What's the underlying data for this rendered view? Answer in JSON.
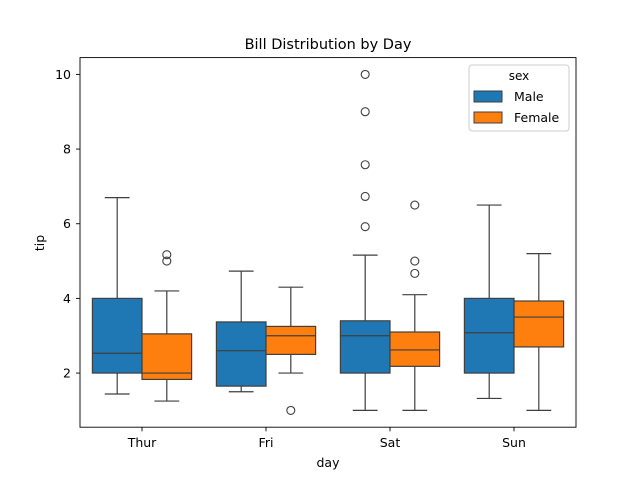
{
  "chart_data": {
    "type": "boxplot",
    "title": "Bill Distribution by Day",
    "xlabel": "day",
    "ylabel": "tip",
    "ylim": [
      0.55,
      10.45
    ],
    "yticks": [
      2,
      4,
      6,
      8,
      10
    ],
    "ytick_labels": [
      "2",
      "4",
      "6",
      "8",
      "10"
    ],
    "categories": [
      "Thur",
      "Fri",
      "Sat",
      "Sun"
    ],
    "legend": {
      "title": "sex",
      "placement": "top-right",
      "entries": [
        "Male",
        "Female"
      ]
    },
    "series": [
      {
        "name": "Male",
        "color": "#1f77b4",
        "boxes": [
          {
            "whisker_low": 1.44,
            "q1": 2.0,
            "median": 2.53,
            "q3": 4.0,
            "whisker_high": 6.7,
            "outliers": []
          },
          {
            "whisker_low": 1.5,
            "q1": 1.65,
            "median": 2.6,
            "q3": 3.37,
            "whisker_high": 4.73,
            "outliers": []
          },
          {
            "whisker_low": 1.0,
            "q1": 2.0,
            "median": 3.0,
            "q3": 3.4,
            "whisker_high": 5.16,
            "outliers": [
              5.92,
              6.73,
              7.58,
              9.0,
              10.0
            ]
          },
          {
            "whisker_low": 1.32,
            "q1": 2.0,
            "median": 3.08,
            "q3": 4.0,
            "whisker_high": 6.5,
            "outliers": []
          }
        ]
      },
      {
        "name": "Female",
        "color": "#ff7f0e",
        "boxes": [
          {
            "whisker_low": 1.25,
            "q1": 1.83,
            "median": 2.0,
            "q3": 3.05,
            "whisker_high": 4.2,
            "outliers": [
              5.0,
              5.17
            ]
          },
          {
            "whisker_low": 2.0,
            "q1": 2.5,
            "median": 3.0,
            "q3": 3.25,
            "whisker_high": 4.3,
            "outliers": [
              1.0
            ]
          },
          {
            "whisker_low": 1.0,
            "q1": 2.18,
            "median": 2.62,
            "q3": 3.1,
            "whisker_high": 4.1,
            "outliers": [
              4.67,
              5.0,
              6.5
            ]
          },
          {
            "whisker_low": 1.0,
            "q1": 2.7,
            "median": 3.5,
            "q3": 3.93,
            "whisker_high": 5.2,
            "outliers": []
          }
        ]
      }
    ]
  }
}
